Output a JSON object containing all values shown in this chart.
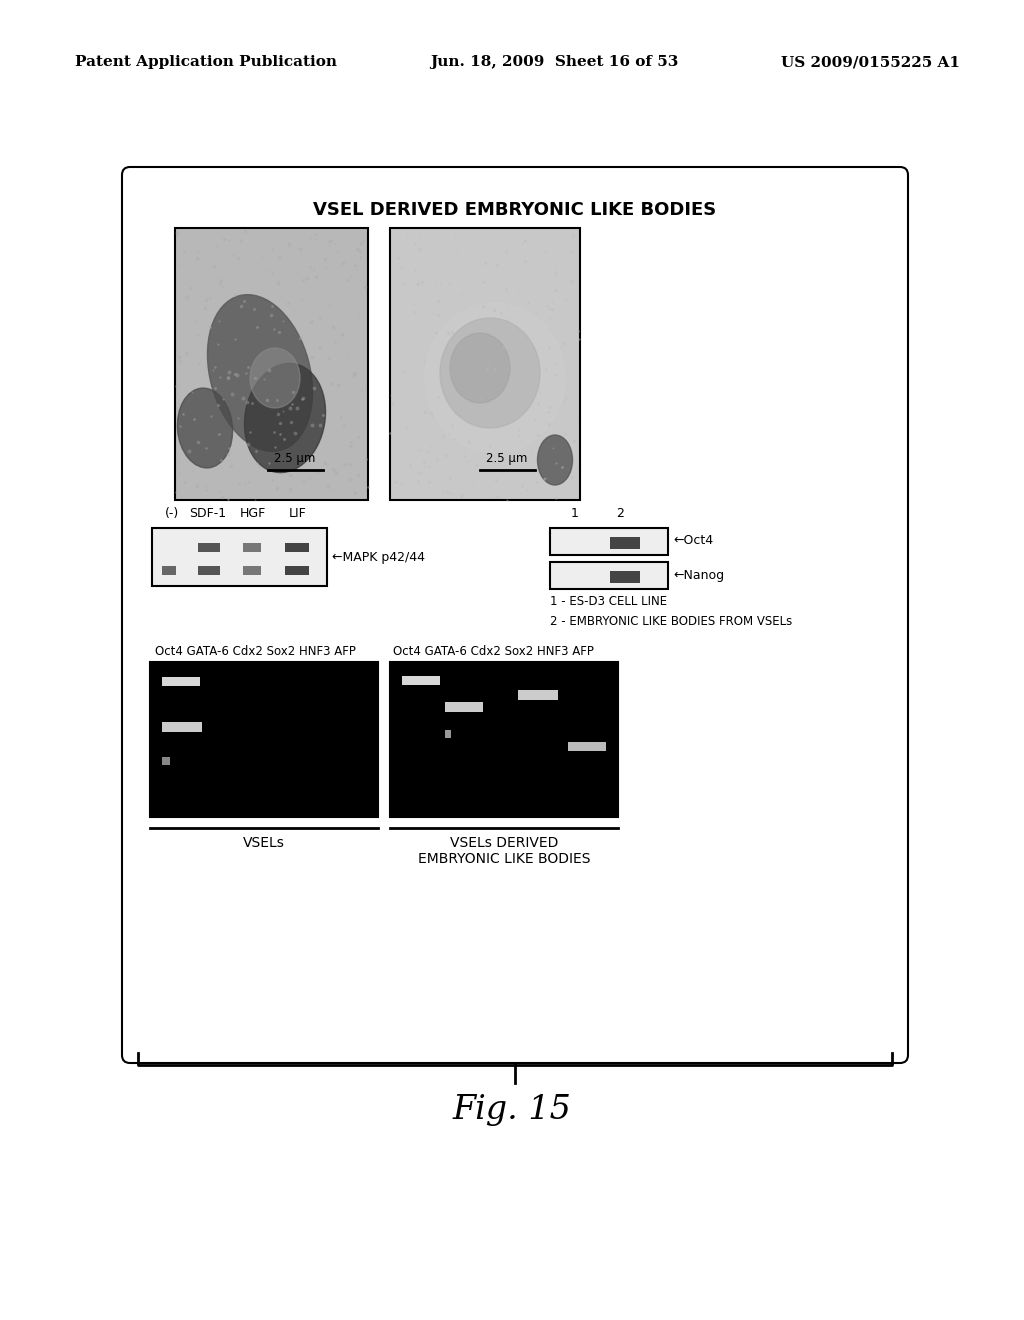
{
  "bg_color": "#ffffff",
  "header_left": "Patent Application Publication",
  "header_center": "Jun. 18, 2009  Sheet 16 of 53",
  "header_right": "US 2009/0155225 A1",
  "fig_title": "VSEL DERIVED EMBRYONIC LIKE BODIES",
  "scale_bar_text": "2.5 μm",
  "mapk_label": "←MAPK p42/44",
  "oct4_label": "←Oct4",
  "nanog_label": "←Nanog",
  "legend1": "1 - ES-D3 CELL LINE",
  "legend2": "2 - EMBRYONIC LIKE BODIES FROM VSELs",
  "pcr_label_left": "Oct4 GATA-6 Cdx2 Sox2 HNF3 AFP",
  "pcr_label_right": "Oct4 GATA-6 Cdx2 Sox2 HNF3 AFP",
  "vsels_label": "VSELs",
  "vsels_derived_label": "VSELs DERIVED\nEMBRYONIC LIKE BODIES",
  "fig_caption": "Fig. 15"
}
